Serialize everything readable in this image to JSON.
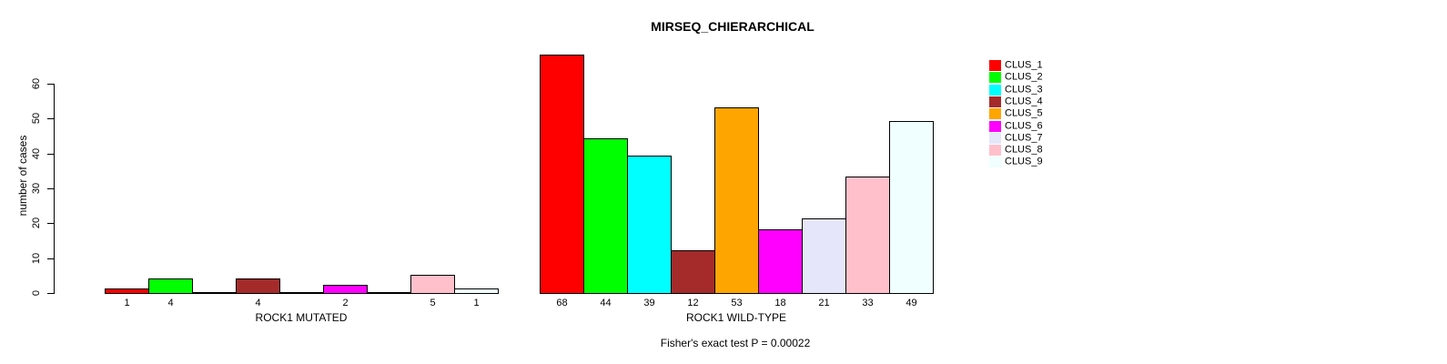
{
  "chart_data": {
    "type": "bar",
    "title": "MIRSEQ_CHIERARCHICAL",
    "categories": [
      "ROCK1 MUTATED",
      "ROCK1 WILD-TYPE"
    ],
    "series": [
      {
        "name": "CLUS_1",
        "color": "#FF0000",
        "values": [
          1,
          68
        ]
      },
      {
        "name": "CLUS_2",
        "color": "#00FF00",
        "values": [
          4,
          44
        ]
      },
      {
        "name": "CLUS_3",
        "color": "#00FFFF",
        "values": [
          0,
          39
        ]
      },
      {
        "name": "CLUS_4",
        "color": "#A52A2A",
        "values": [
          4,
          12
        ]
      },
      {
        "name": "CLUS_5",
        "color": "#FFA500",
        "values": [
          0,
          53
        ]
      },
      {
        "name": "CLUS_6",
        "color": "#FF00FF",
        "values": [
          2,
          18
        ]
      },
      {
        "name": "CLUS_7",
        "color": "#E6E6FA",
        "values": [
          0,
          21
        ]
      },
      {
        "name": "CLUS_8",
        "color": "#FFC0CB",
        "values": [
          5,
          33
        ]
      },
      {
        "name": "CLUS_9",
        "color": "#F0FFFF",
        "values": [
          1,
          49
        ]
      }
    ],
    "ylabel": "number of cases",
    "ylim": [
      0,
      60
    ],
    "yticks": [
      0,
      10,
      20,
      30,
      40,
      50,
      60
    ],
    "grid": false,
    "legend_position": "right",
    "bar_value_labels_shown_for_zero": false,
    "annotation": "Fisher's exact test P = 0.00022",
    "bar_border_color": "#000000",
    "background_color": "#FFFFFF"
  }
}
